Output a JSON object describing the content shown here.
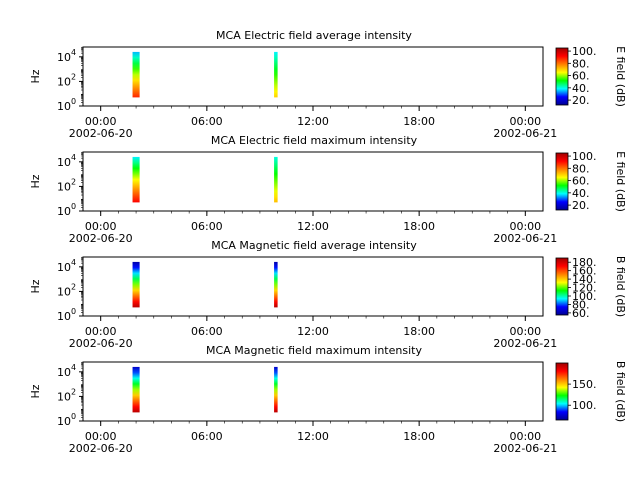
{
  "chart_data": [
    {
      "type": "heatmap",
      "title": "MCA  Electric field average intensity",
      "ylabel": "Hz",
      "colorbar_label": "E field (dB)",
      "colorbar_range": [
        12,
        105
      ],
      "colorbar_ticks": [
        "20.",
        "40.",
        "60.",
        "80.",
        "100."
      ],
      "x_ticks": [
        {
          "hour": 0,
          "label": "00:00",
          "date": "2002-06-20"
        },
        {
          "hour": 6,
          "label": "06:00"
        },
        {
          "hour": 12,
          "label": "12:00"
        },
        {
          "hour": 18,
          "label": "18:00"
        },
        {
          "hour": 24,
          "label": "00:00",
          "date": "2002-06-21"
        }
      ],
      "y_ticks": [
        {
          "base": "10",
          "exp": "0"
        },
        {
          "base": "10",
          "exp": "2"
        },
        {
          "base": "10",
          "exp": "4"
        }
      ],
      "ylim_log10": [
        0,
        4.8
      ],
      "xlim_hours": [
        -1,
        25
      ],
      "bursts": [
        {
          "start": 1.8,
          "end": 2.2,
          "fmin_log10": 0.7,
          "fmax_log10": 4.4,
          "low_value": 88,
          "high_value": 35
        },
        {
          "start": 9.8,
          "end": 10.0,
          "fmin_log10": 0.7,
          "fmax_log10": 4.4,
          "low_value": 70,
          "high_value": 38
        }
      ]
    },
    {
      "type": "heatmap",
      "title": "MCA  Electric field maximum intensity",
      "ylabel": "Hz",
      "colorbar_label": "E field (dB)",
      "colorbar_range": [
        12,
        105
      ],
      "colorbar_ticks": [
        "20.",
        "40.",
        "60.",
        "80.",
        "100."
      ],
      "x_ticks": [
        {
          "hour": 0,
          "label": "00:00",
          "date": "2002-06-20"
        },
        {
          "hour": 6,
          "label": "06:00"
        },
        {
          "hour": 12,
          "label": "12:00"
        },
        {
          "hour": 18,
          "label": "18:00"
        },
        {
          "hour": 24,
          "label": "00:00",
          "date": "2002-06-21"
        }
      ],
      "y_ticks": [
        {
          "base": "10",
          "exp": "0"
        },
        {
          "base": "10",
          "exp": "2"
        },
        {
          "base": "10",
          "exp": "4"
        }
      ],
      "ylim_log10": [
        0,
        4.8
      ],
      "xlim_hours": [
        -1,
        25
      ],
      "bursts": [
        {
          "start": 1.8,
          "end": 2.2,
          "fmin_log10": 0.7,
          "fmax_log10": 4.4,
          "low_value": 92,
          "high_value": 38
        },
        {
          "start": 9.8,
          "end": 10.0,
          "fmin_log10": 0.7,
          "fmax_log10": 4.4,
          "low_value": 72,
          "high_value": 40
        }
      ]
    },
    {
      "type": "heatmap",
      "title": "MCA  Magnetic field average intensity",
      "ylabel": "Hz",
      "colorbar_label": "B field (dB)",
      "colorbar_range": [
        55,
        190
      ],
      "colorbar_ticks": [
        "60.",
        "80.",
        "100.",
        "120.",
        "140.",
        "160.",
        "180."
      ],
      "x_ticks": [
        {
          "hour": 0,
          "label": "00:00",
          "date": "2002-06-20"
        },
        {
          "hour": 6,
          "label": "06:00"
        },
        {
          "hour": 12,
          "label": "12:00"
        },
        {
          "hour": 18,
          "label": "18:00"
        },
        {
          "hour": 24,
          "label": "00:00",
          "date": "2002-06-21"
        }
      ],
      "y_ticks": [
        {
          "base": "10",
          "exp": "0"
        },
        {
          "base": "10",
          "exp": "2"
        },
        {
          "base": "10",
          "exp": "4"
        }
      ],
      "ylim_log10": [
        0,
        4.8
      ],
      "xlim_hours": [
        -1,
        25
      ],
      "bursts": [
        {
          "start": 1.8,
          "end": 2.2,
          "fmin_log10": 0.7,
          "fmax_log10": 4.4,
          "low_value": 185,
          "high_value": 60
        },
        {
          "start": 9.8,
          "end": 10.0,
          "fmin_log10": 0.7,
          "fmax_log10": 4.4,
          "low_value": 185,
          "high_value": 60
        }
      ]
    },
    {
      "type": "heatmap",
      "title": "MCA  Magnetic field maximum intensity",
      "ylabel": "Hz",
      "colorbar_label": "B field (dB)",
      "colorbar_range": [
        65,
        200
      ],
      "colorbar_ticks": [
        "100.",
        "150."
      ],
      "x_ticks": [
        {
          "hour": 0,
          "label": "00:00",
          "date": "2002-06-20"
        },
        {
          "hour": 6,
          "label": "06:00"
        },
        {
          "hour": 12,
          "label": "12:00"
        },
        {
          "hour": 18,
          "label": "18:00"
        },
        {
          "hour": 24,
          "label": "00:00",
          "date": "2002-06-21"
        }
      ],
      "y_ticks": [
        {
          "base": "10",
          "exp": "0"
        },
        {
          "base": "10",
          "exp": "2"
        },
        {
          "base": "10",
          "exp": "4"
        }
      ],
      "ylim_log10": [
        0,
        4.8
      ],
      "xlim_hours": [
        -1,
        25
      ],
      "bursts": [
        {
          "start": 1.8,
          "end": 2.2,
          "fmin_log10": 0.7,
          "fmax_log10": 4.4,
          "low_value": 195,
          "high_value": 75
        },
        {
          "start": 9.8,
          "end": 10.0,
          "fmin_log10": 0.7,
          "fmax_log10": 4.4,
          "low_value": 195,
          "high_value": 75
        }
      ]
    }
  ]
}
